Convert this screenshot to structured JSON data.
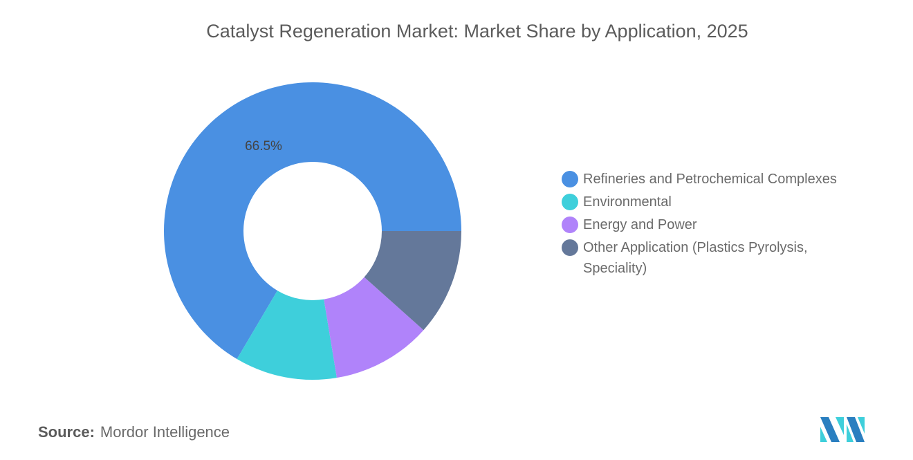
{
  "chart_data": {
    "type": "pie",
    "variant": "donut",
    "title": "Catalyst Regeneration Market: Market Share by Application, 2025",
    "categories": [
      "Refineries and Petrochemical Complexes",
      "Environmental",
      "Energy and Power",
      "Other Application (Plastics Pyrolysis, Speciality)"
    ],
    "values": [
      66.5,
      11.1,
      10.8,
      11.6
    ],
    "colors": [
      "#4a90e2",
      "#3ecfdb",
      "#b083fa",
      "#64789a"
    ],
    "data_labels": [
      "66.5%",
      "",
      "",
      ""
    ],
    "legend_position": "right"
  },
  "source": {
    "label": "Source:",
    "value": "Mordor Intelligence"
  },
  "logo": {
    "colors": [
      "#2a7fc0",
      "#3ecfdb"
    ]
  }
}
